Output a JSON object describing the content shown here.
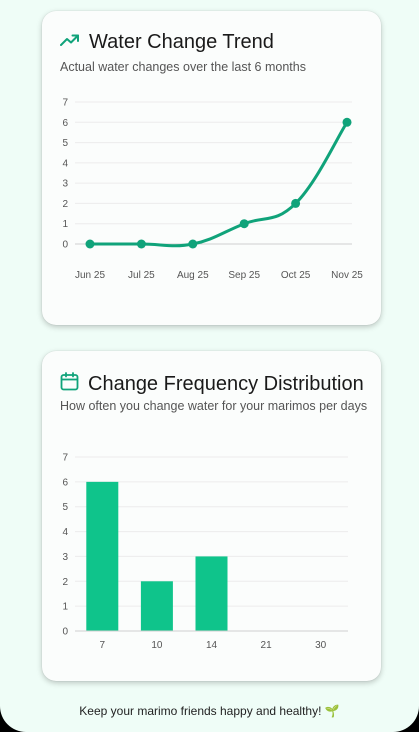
{
  "trend_card": {
    "title": "Water Change Trend",
    "subtitle": "Actual water changes over the last 6 months",
    "icon": "trending-up-icon"
  },
  "frequency_card": {
    "title": "Change Frequency Distribution",
    "subtitle": "How often you change water for your marimos per days",
    "icon": "calendar-icon"
  },
  "footer": {
    "text": "Keep your marimo friends happy and healthy! 🌱"
  },
  "colors": {
    "accent": "#10a37a",
    "bar": "#0fc48b",
    "background": "#effdf7",
    "card": "#fbfdfc"
  },
  "chart_data": [
    {
      "type": "line",
      "categories": [
        "Jun 25",
        "Jul 25",
        "Aug 25",
        "Sep 25",
        "Oct 25",
        "Nov 25"
      ],
      "values": [
        0,
        0,
        0,
        1,
        2,
        6
      ],
      "ylim": [
        0,
        7
      ],
      "yticks": [
        0,
        1,
        2,
        3,
        4,
        5,
        6,
        7
      ],
      "grid": true
    },
    {
      "type": "bar",
      "categories": [
        "7",
        "10",
        "14",
        "21",
        "30"
      ],
      "values": [
        6,
        2,
        3,
        0,
        0
      ],
      "ylim": [
        0,
        7
      ],
      "yticks": [
        0,
        1,
        2,
        3,
        4,
        5,
        6,
        7
      ],
      "grid": true
    }
  ]
}
